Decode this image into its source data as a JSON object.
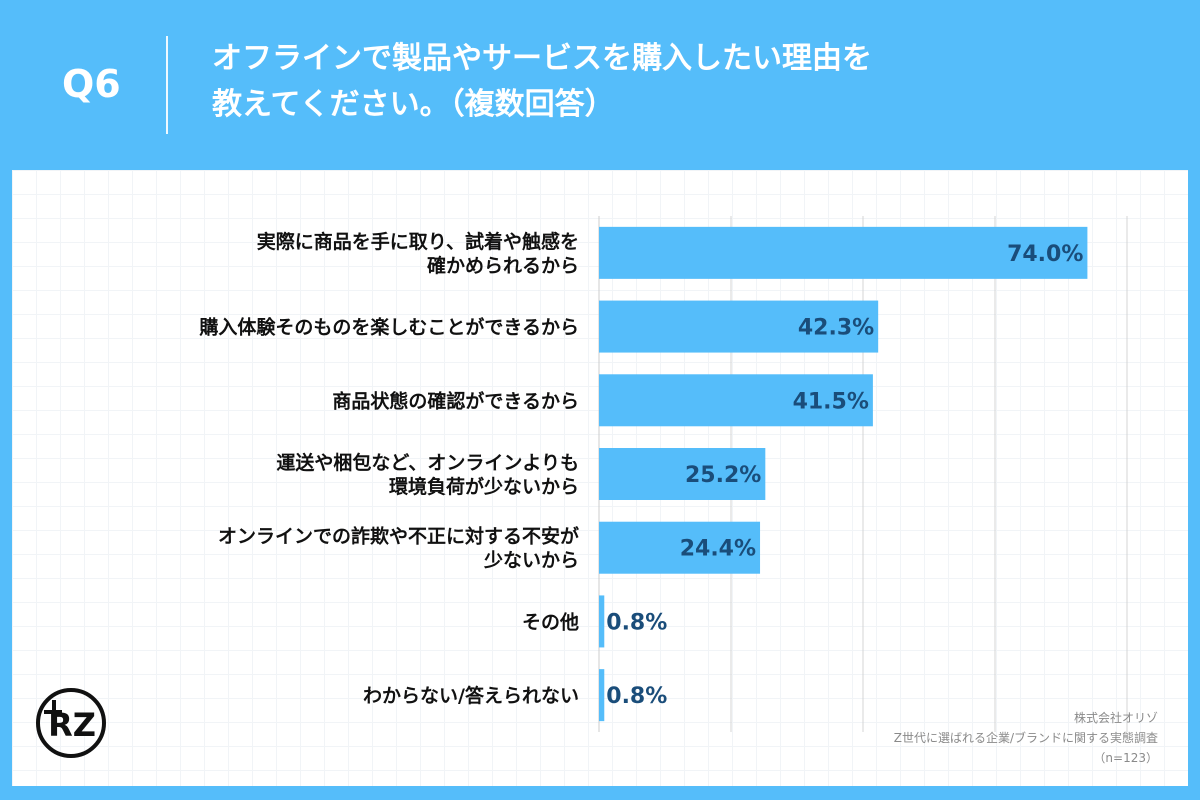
{
  "header": {
    "qnum": "Q6",
    "title_line1": "オフラインで製品やサービスを購入したい理由を",
    "title_line2": "教えてください。（複数回答）"
  },
  "chart_data": {
    "type": "bar",
    "orientation": "horizontal",
    "categories": [
      [
        "実際に商品を手に取り、試着や触感を",
        "確かめられるから"
      ],
      [
        "購入体験そのものを楽しむことができるから"
      ],
      [
        "商品状態の確認ができるから"
      ],
      [
        "運送や梱包など、オンラインよりも",
        "環境負荷が少ないから"
      ],
      [
        "オンラインでの詐欺や不正に対する不安が",
        "少ないから"
      ],
      [
        "その他"
      ],
      [
        "わからない/答えられない"
      ]
    ],
    "values": [
      74.0,
      42.3,
      41.5,
      25.2,
      24.4,
      0.8,
      0.8
    ],
    "value_labels": [
      "74.0%",
      "42.3%",
      "41.5%",
      "25.2%",
      "24.4%",
      "0.8%",
      "0.8%"
    ],
    "xlim": [
      0,
      80
    ],
    "grid": true,
    "bar_color": "#55bdfa",
    "label_color": "#1a4d7a"
  },
  "footer": {
    "company": "株式会社オリゾ",
    "survey": "Z世代に選ばれる企業/ブランドに関する実態調査",
    "n": "（n=123）"
  },
  "logo": {
    "icon": "orizo-logo-icon",
    "text": "RZ"
  }
}
